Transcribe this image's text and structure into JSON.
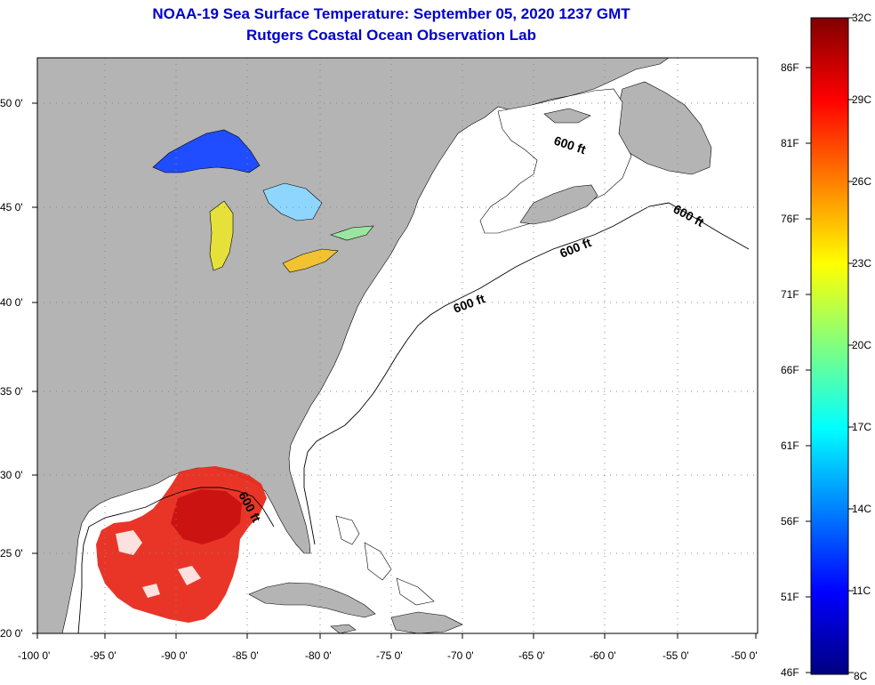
{
  "title": {
    "line1": "NOAA-19 Sea Surface Temperature:  September 05, 2020 1237 GMT",
    "line2": "Rutgers Coastal Ocean Observation Lab"
  },
  "colors": {
    "land": "#b4b4b4",
    "ocean_no_data": "#ffffff",
    "title": "#0000cc"
  },
  "map": {
    "lon_ticks": [
      {
        "value": -100,
        "label": "-100 0'"
      },
      {
        "value": -95,
        "label": "-95 0'"
      },
      {
        "value": -90,
        "label": "-90 0'"
      },
      {
        "value": -85,
        "label": "-85 0'"
      },
      {
        "value": -80,
        "label": "-80 0'"
      },
      {
        "value": -75,
        "label": "-75 0'"
      },
      {
        "value": -70,
        "label": "-70 0'"
      },
      {
        "value": -65,
        "label": "-65 0'"
      },
      {
        "value": -60,
        "label": "-60 0'"
      },
      {
        "value": -55,
        "label": "-55 0'"
      },
      {
        "value": -50,
        "label": "-50 0'"
      }
    ],
    "lat_ticks": [
      {
        "value": 20,
        "label": "20 0'"
      },
      {
        "value": 25,
        "label": "25 0'"
      },
      {
        "value": 30,
        "label": "30 0'"
      },
      {
        "value": 35,
        "label": "35 0'"
      },
      {
        "value": 40,
        "label": "40 0'"
      },
      {
        "value": 45,
        "label": "45 0'"
      },
      {
        "value": 50,
        "label": "50 0'"
      }
    ],
    "isobath_labels": [
      "600 ft",
      "600 ft",
      "600 ft",
      "600 ft",
      "600 ft"
    ]
  },
  "colorbar": {
    "celsius": [
      "32C",
      "29C",
      "26C",
      "23C",
      "20C",
      "17C",
      "14C",
      "11C",
      "8C"
    ],
    "fahrenheit": [
      "86F",
      "81F",
      "76F",
      "71F",
      "66F",
      "61F",
      "56F",
      "51F",
      "46F"
    ],
    "gradient_stops": [
      "#800000",
      "#ff0000",
      "#ff8000",
      "#ffff00",
      "#80ff80",
      "#00ffff",
      "#0080ff",
      "#0000ff",
      "#000080"
    ]
  }
}
